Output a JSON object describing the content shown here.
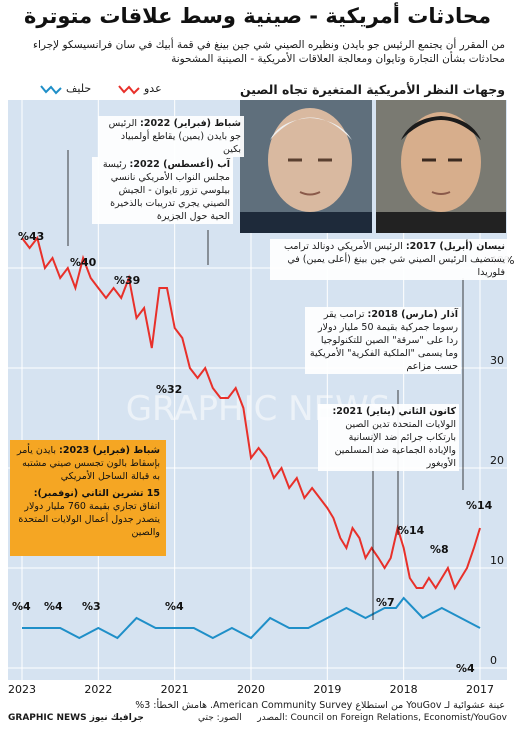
{
  "title": "محادثات أمريكية - صينية وسط علاقات متوترة",
  "subtitle": "من المقرر أن يجتمع الرئيس جو بايدن ونظيره الصيني شي جين بينغ في قمة أبيك في سان فرانسيسكو لإجراء محادثات بشأن التجارة وتايوان ومعالجة العلاقات الأمريكية - الصينية المشحونة",
  "legend": {
    "enemy": "عدو",
    "ally": "حليف"
  },
  "panel_title": "وجهات النظر الأمريكية المتغيرة تجاه الصين",
  "photos": {
    "left": "Joe Biden portrait",
    "right": "Xi Jinping portrait"
  },
  "annotations": {
    "feb2022_head": "شباط (فبراير) 2022:",
    "feb2022_body": " الرئيس جو بايدن (يمين) يقاطع أولمبياد بكين",
    "aug2022_head": "آب (أغسطس) 2022:",
    "aug2022_body": " رئيسة مجلس النواب الأمريكي نانسي بيلوسي تزور تايوان - الجيش الصيني يجري تدريبات بالذخيرة الحية حول الجزيرة",
    "apr2017_head": "نيسان (أبريل) 2017:",
    "apr2017_body": " الرئيس الأمريكي دونالد ترامب يستضيف الرئيس الصيني شي جين بينغ (أعلى يمين) في فلوريدا",
    "mar2018_head": "آذار (مارس) 2018:",
    "mar2018_body": " ترامب يقر رسوما جمركية بقيمة 50 مليار دولار ردا على \"سرقة\" الصين للتكنولوجيا وما يسمى \"الملكية الفكرية\" الأمريكية حسب مزاعم",
    "jan2021_head": "كانون الثاني (يناير) 2021:",
    "jan2021_body": " الولايات المتحدة تدين الصين بارتكاب جرائم ضد الإنسانية والإبادة الجماعية ضد المسلمين الأويغور",
    "feb2023_head": "شباط (فبراير) 2023:",
    "feb2023_body": " بايدن يأمر بإسقاط بالون تجسس صيني مشتبه به قبالة الساحل الأمريكي",
    "nov2023_head": "15 تشرين الثاني (نوفمبر):",
    "nov2023_body": " اتفاق تجاري بقيمة 760 مليار دولار يتصدر جدول أعمال الولايات المتحدة والصين"
  },
  "value_labels": {
    "enemy_2023": "%43",
    "enemy_2022": "%40",
    "enemy_2021_early": "%39",
    "enemy_2021": "%32",
    "enemy_2018": "%14",
    "enemy_2017_low": "%8",
    "enemy_2017": "%14",
    "ally_2018": "%7",
    "ally_2023": "%4",
    "ally_2022": "%4",
    "ally_2022b": "%3",
    "ally_2021": "%4",
    "ally_2017": "%4"
  },
  "sample_note": "عينة عشوائية لـ YouGov من استطلاع American Community Survey. هامش الخطأ: 3%",
  "source": "المصدر: Council on Foreign Relations, Economist/YouGov",
  "credit": "الصور: جتي",
  "brand": "GRAPHIC NEWS جرافيك نيوز",
  "watermark": "GRAPHIC NEWS",
  "colors": {
    "enemy": "#e8302a",
    "ally": "#1f8fc8",
    "background": "#d6e3f1",
    "highlight": "#f5a623"
  },
  "chart_data": {
    "type": "line",
    "x_direction": "right-to-left (oldest on the right)",
    "x_ticks": [
      "2017",
      "2018",
      "2019",
      "2020",
      "2021",
      "2022",
      "2023"
    ],
    "y_ticks": [
      0,
      10,
      20,
      30,
      40
    ],
    "y_ticks_suffix": "%",
    "ylim": [
      0,
      45
    ],
    "series": [
      {
        "name": "عدو",
        "x": [
          2017.0,
          2017.08,
          2017.17,
          2017.25,
          2017.33,
          2017.42,
          2017.5,
          2017.58,
          2017.67,
          2017.75,
          2017.83,
          2017.92,
          2018.0,
          2018.08,
          2018.17,
          2018.25,
          2018.33,
          2018.42,
          2018.5,
          2018.58,
          2018.67,
          2018.75,
          2018.83,
          2018.92,
          2019.0,
          2019.1,
          2019.2,
          2019.3,
          2019.4,
          2019.5,
          2019.6,
          2019.7,
          2019.8,
          2019.9,
          2020.0,
          2020.1,
          2020.2,
          2020.3,
          2020.4,
          2020.5,
          2020.6,
          2020.7,
          2020.8,
          2020.9,
          2021.0,
          2021.1,
          2021.2,
          2021.3,
          2021.4,
          2021.5,
          2021.6,
          2021.7,
          2021.8,
          2021.9,
          2022.0,
          2022.1,
          2022.2,
          2022.3,
          2022.4,
          2022.5,
          2022.6,
          2022.7,
          2022.8,
          2022.9,
          2023.0
        ],
        "values": [
          14,
          12,
          10,
          9,
          8,
          10,
          9,
          8,
          9,
          8,
          8,
          9,
          12,
          14,
          11,
          10,
          11,
          12,
          11,
          13,
          14,
          12,
          13,
          15,
          16,
          17,
          18,
          17,
          19,
          18,
          20,
          19,
          21,
          22,
          21,
          26,
          28,
          27,
          27,
          28,
          30,
          29,
          30,
          33,
          34,
          38,
          38,
          32,
          36,
          35,
          39,
          37,
          38,
          37,
          38,
          39,
          41,
          38,
          40,
          39,
          41,
          40,
          43,
          42,
          43
        ]
      },
      {
        "name": "حليف",
        "x": [
          2017.0,
          2017.25,
          2017.5,
          2017.75,
          2018.0,
          2018.1,
          2018.25,
          2018.5,
          2018.75,
          2019.0,
          2019.25,
          2019.5,
          2019.75,
          2020.0,
          2020.25,
          2020.5,
          2020.75,
          2021.0,
          2021.25,
          2021.5,
          2021.75,
          2022.0,
          2022.25,
          2022.5,
          2022.75,
          2023.0
        ],
        "values": [
          4,
          5,
          6,
          5,
          7,
          6,
          6,
          5,
          6,
          5,
          4,
          4,
          5,
          3,
          4,
          3,
          4,
          4,
          4,
          5,
          3,
          4,
          3,
          4,
          4,
          4
        ]
      }
    ]
  }
}
